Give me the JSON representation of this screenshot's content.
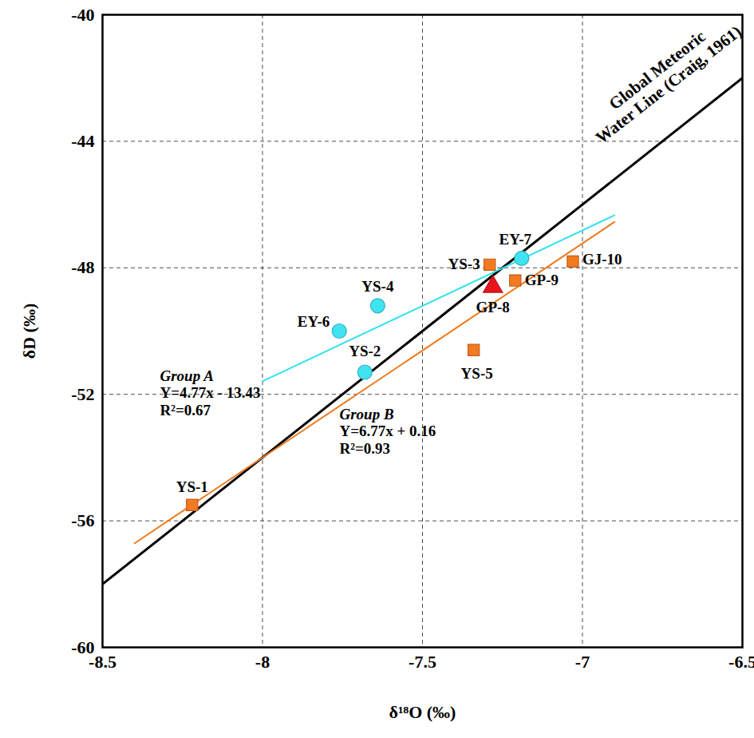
{
  "chart_data": {
    "type": "scatter",
    "x_label": "δ¹⁸O (‰)",
    "y_label": "δD (‰)",
    "xlim": [
      -8.5,
      -6.5
    ],
    "ylim": [
      -60,
      -40
    ],
    "xticks": [
      -8.5,
      -8,
      -7.5,
      -7,
      -6.5
    ],
    "yticks": [
      -60,
      -56,
      -52,
      -48,
      -44,
      -40
    ],
    "grid": true,
    "series": [
      {
        "name": "Group A",
        "type": "scatter",
        "marker": "circle",
        "color": "#3fe3f2",
        "x": [
          -7.76,
          -7.64,
          -7.68,
          -7.19
        ],
        "values": [
          -50.0,
          -49.2,
          -51.3,
          -47.7
        ],
        "labels": [
          "EY-6",
          "YS-4",
          "YS-2",
          "EY-7"
        ]
      },
      {
        "name": "Group B",
        "type": "scatter",
        "marker": "square",
        "color": "#f47a20",
        "x": [
          -8.22,
          -7.29,
          -7.34,
          -7.21,
          -7.03
        ],
        "values": [
          -55.5,
          -47.9,
          -50.6,
          -48.4,
          -47.8
        ],
        "labels": [
          "YS-1",
          "YS-3",
          "YS-5",
          "GP-9",
          "GJ-10"
        ]
      },
      {
        "type": "scatter",
        "marker": "triangle",
        "color": "#e8141c",
        "x": [
          -7.28
        ],
        "values": [
          -48.6
        ],
        "labels": [
          "GP-8"
        ]
      },
      {
        "type": "line",
        "color": "#000000",
        "x": [
          -8.5,
          -6.5
        ],
        "values": [
          -58,
          -42
        ],
        "annotation": [
          "Global Meteoric",
          "Water Line (Craig, 1961)"
        ]
      },
      {
        "type": "line",
        "color": "#31e3ef",
        "x": [
          -8.0,
          -6.9
        ],
        "values": [
          -51.59,
          -46.34
        ],
        "annotation": [
          "Group A",
          "Y=4.77x - 13.43",
          "R²=0.67"
        ]
      },
      {
        "type": "line",
        "color": "#f07a1c",
        "x": [
          -8.4,
          -6.9
        ],
        "values": [
          -56.71,
          -46.55
        ],
        "annotation": [
          "Group B",
          "Y=6.77x + 0.16",
          "R²=0.93"
        ]
      }
    ]
  }
}
